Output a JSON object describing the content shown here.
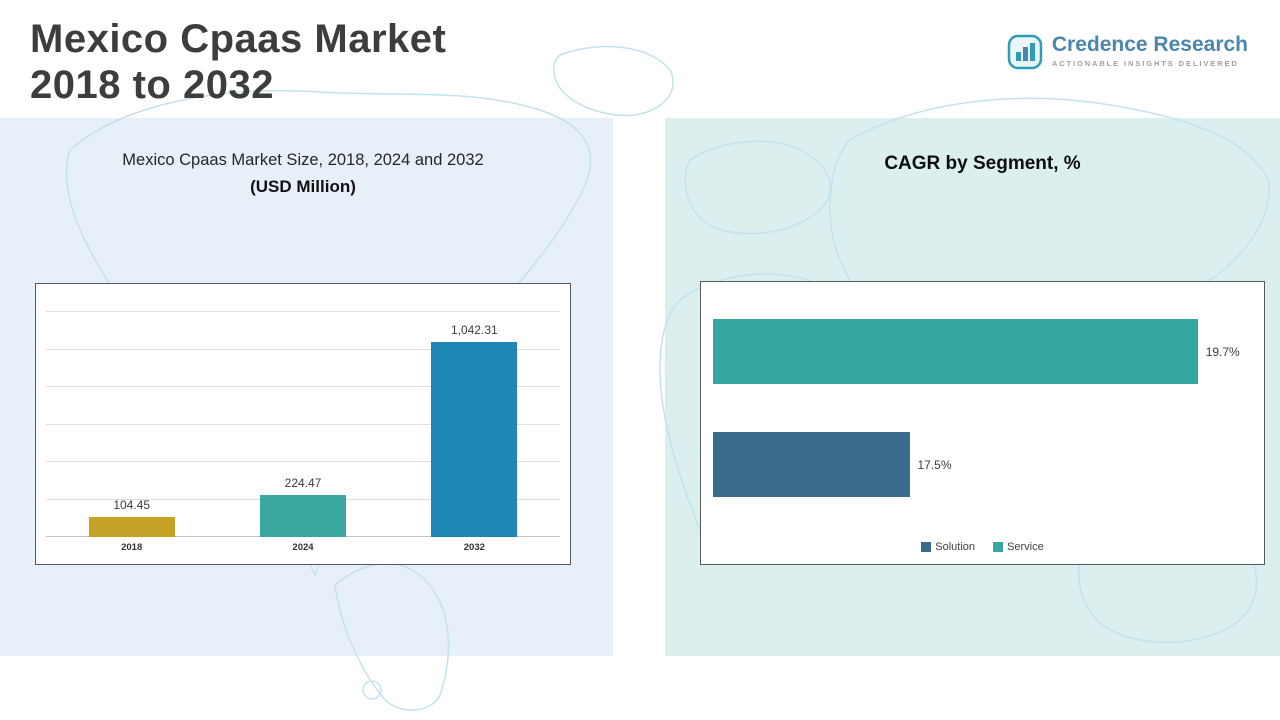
{
  "page": {
    "title_line1": "Mexico Cpaas Market",
    "title_line2": "2018 to 2032"
  },
  "logo": {
    "name": "Credence Research",
    "tagline": "Actionable Insights Delivered",
    "accent_color": "#2f9cb5",
    "name_color": "#4a86ad"
  },
  "left_chart": {
    "title": "Mexico Cpaas Market Size, 2018, 2024 and 2032",
    "subtitle": "(USD Million)"
  },
  "right_chart": {
    "title": "CAGR by Segment, %"
  },
  "chart_data": [
    {
      "type": "bar",
      "orientation": "vertical",
      "title": "Mexico Cpaas Market Size, 2018, 2024 and 2032 (USD Million)",
      "categories": [
        "2018",
        "2024",
        "2032"
      ],
      "values": [
        104.45,
        224.47,
        1042.31
      ],
      "labels": [
        "104.45",
        "224.47",
        "1,042.31"
      ],
      "colors": [
        "#c5a126",
        "#3aa89f",
        "#1e87b5"
      ],
      "ylim": [
        0,
        1200
      ],
      "gridline_step": 200,
      "grid": true,
      "legend": "none"
    },
    {
      "type": "bar",
      "orientation": "horizontal",
      "title": "CAGR by Segment, %",
      "categories": [
        "Service",
        "Solution"
      ],
      "values": [
        19.7,
        17.5
      ],
      "labels": [
        "19.7%",
        "17.5%"
      ],
      "colors": [
        "#35a8a1",
        "#3a6b8d"
      ],
      "xlim": [
        16,
        20
      ],
      "grid": false,
      "legend_position": "bottom",
      "legend": [
        {
          "label": "Solution",
          "color": "#3a6b8d"
        },
        {
          "label": "Service",
          "color": "#35a8a1"
        }
      ]
    }
  ]
}
